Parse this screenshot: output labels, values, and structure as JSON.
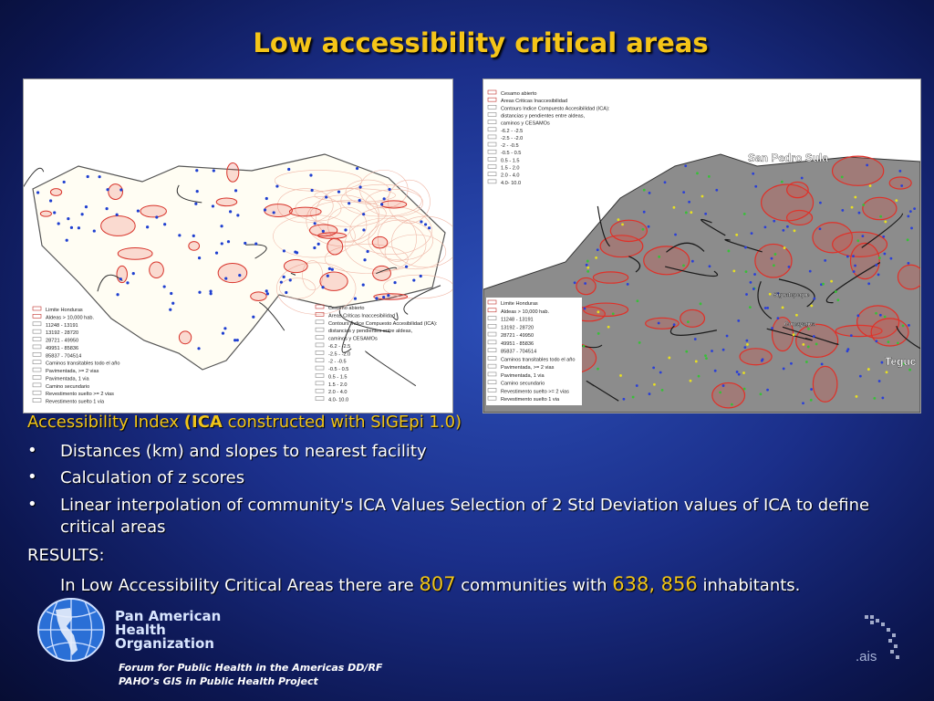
{
  "title": "Low accessibility critical areas",
  "maps": [
    {
      "legend_blocks": [
        [
          "Limite Honduras",
          "Aldeas > 10,000 hab.",
          "11248 - 13191",
          "13192 - 28720",
          "28721 - 49950",
          "49951 - 85836",
          "85837 - 704514",
          "Caminos transitables todo el año",
          "Pavimentada, >= 2 vias",
          "Pavimentada, 1 via",
          "Camino secundario",
          "Revestimento suelto >= 2 vias",
          "Revestimento suelto 1 via"
        ],
        [
          "Cesamo abierto",
          "Areas Criticas Inaccesibilidad",
          "Contours Indice Compuesto Accesibilidad (ICA):",
          "distancias y pendientes entre aldeas,",
          "caminos y CESAMOs",
          "-6.2 - -2.5",
          "-2.5 - -2.0",
          "-2 - -0.5",
          "-0.5 - 0.5",
          "0.5 - 1.5",
          "1.5 - 2.0",
          "2.0 - 4.0",
          "4.0- 10.0"
        ]
      ],
      "places": []
    },
    {
      "legend_blocks": [
        [
          "Cesamo abierto",
          "Areas Criticas Inaccesibilidad",
          "Contours Indice Compuesto Accesibilidad (ICA):",
          "distancias y pendientes entre aldeas,",
          "caminos y CESAMOs",
          "-6.2 - -2.5",
          "-2.5 - -2.0",
          "-2 - -0.5",
          "-0.5 - 0.5",
          "0.5 - 1.5",
          "1.5 - 2.0",
          "2.0 - 4.0",
          "4.0- 10.0"
        ],
        [
          "Limite Honduras",
          "Aldeas > 10,000 hab.",
          "11248 - 13191",
          "13192 - 28720",
          "28721 - 49950",
          "49951 - 85836",
          "85837 - 704514",
          "Caminos transitables todo el año",
          "Pavimentada, >= 2 vias",
          "Pavimentada, 1 via",
          "Camino secundario",
          "Revestimento suelto >= 2 vias",
          "Revestimento suelto 1 via"
        ]
      ],
      "places": [
        "San Pedro Sula",
        "Siguatepeque",
        "Comayagua",
        "Teguc"
      ]
    }
  ],
  "body": {
    "heading": {
      "prefix": "Accessibility Index ",
      "bold": "(ICA",
      "rest": " constructed with SIGEpi 1.0)"
    },
    "bullets": [
      "Distances (km) and slopes to nearest facility",
      "Calculation of z scores",
      "Linear interpolation of community's ICA Values Selection of 2 Std Deviation values of ICA to define critical areas"
    ],
    "bullet_symbol": "•",
    "results_label": "RESULTS:",
    "results": {
      "t1": "In Low Accessibility Critical Areas there are ",
      "n1": "807",
      "t2": " communities with ",
      "n2": "638, 856",
      "t3": " inhabitants."
    }
  },
  "footer": {
    "org": [
      "Pan American",
      "Health",
      "Organization"
    ],
    "forum": [
      "Forum for Public Health in the Americas DD/RF",
      "PAHO’s GIS in Public Health Project"
    ],
    "logo_text": ".ais"
  }
}
